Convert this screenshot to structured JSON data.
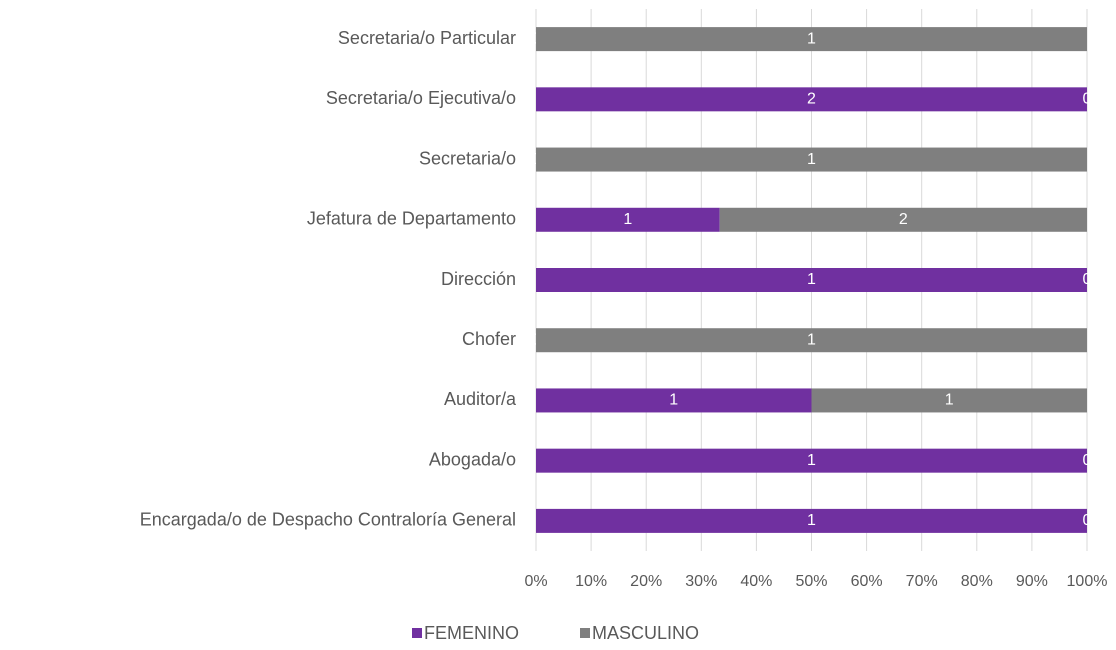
{
  "chart_data": {
    "type": "bar",
    "orientation": "horizontal",
    "stacking": "percent",
    "categories": [
      "Secretaria/o Particular",
      "Secretaria/o Ejecutiva/o",
      "Secretaria/o",
      "Jefatura de Departamento",
      "Dirección",
      "Chofer",
      "Auditor/a",
      "Abogada/o",
      "Encargada/o de Despacho Contraloría General"
    ],
    "series": [
      {
        "name": "FEMENINO",
        "color": "#7030a0",
        "values": [
          0,
          2,
          0,
          1,
          1,
          0,
          1,
          1,
          1
        ]
      },
      {
        "name": "MASCULINO",
        "color": "#7f7f7f",
        "values": [
          1,
          0,
          1,
          2,
          0,
          1,
          1,
          0,
          0
        ]
      }
    ],
    "xlim": [
      0,
      100
    ],
    "xticks": [
      {
        "value": 0,
        "label": "0%"
      },
      {
        "value": 10,
        "label": "10%"
      },
      {
        "value": 20,
        "label": "20%"
      },
      {
        "value": 30,
        "label": "30%"
      },
      {
        "value": 40,
        "label": "40%"
      },
      {
        "value": 50,
        "label": "50%"
      },
      {
        "value": 60,
        "label": "60%"
      },
      {
        "value": 70,
        "label": "70%"
      },
      {
        "value": 80,
        "label": "80%"
      },
      {
        "value": 90,
        "label": "90%"
      },
      {
        "value": 100,
        "label": "100%"
      }
    ],
    "grid": true,
    "legend": "bottom"
  }
}
